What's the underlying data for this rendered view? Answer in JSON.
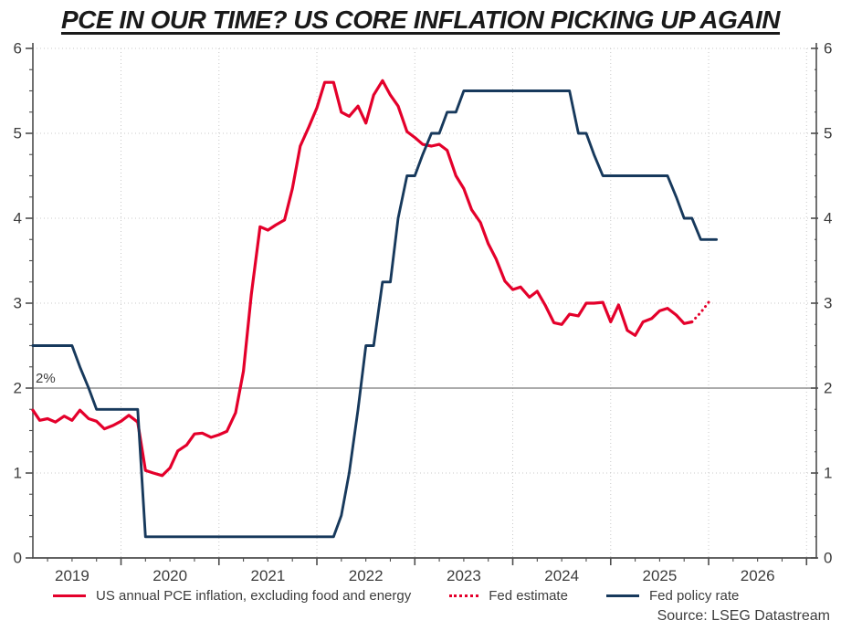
{
  "chart_data": {
    "type": "line",
    "title": "PCE IN OUR TIME? US CORE INFLATION PICKING UP AGAIN",
    "source": "Source: LSEG Datastream",
    "grid": true,
    "legend_position": "bottom",
    "x_axis": {
      "min": 2019.1,
      "max": 2027.1,
      "year_gridlines": [
        2020,
        2021,
        2022,
        2023,
        2024,
        2025,
        2026,
        2027
      ],
      "year_labels": [
        "2019",
        "2020",
        "2021",
        "2022",
        "2023",
        "2024",
        "2025",
        "2026"
      ],
      "minor_tick_interval": 0.25
    },
    "y_axis": {
      "min": 0,
      "max": 6,
      "major_ticks": [
        0,
        1,
        2,
        3,
        4,
        5,
        6
      ],
      "gridline_values": [
        1,
        3,
        4,
        5,
        6
      ],
      "minor_tick_interval": 0.25,
      "dual_axis": true
    },
    "reference_line": {
      "value": 2,
      "label": "2%",
      "color": "#8f8f8f"
    },
    "colors": {
      "grid": "#c8c8c8",
      "axis": "#4d4d4d",
      "text": "#3d3d3d",
      "pce_red": "#e4002b",
      "policy_navy": "#17395c"
    },
    "series": [
      {
        "name": "US annual PCE inflation, excluding food and energy",
        "color": "#e4002b",
        "style": "solid",
        "width": 3.2,
        "points": [
          [
            2019.1,
            1.74
          ],
          [
            2019.17,
            1.62
          ],
          [
            2019.25,
            1.64
          ],
          [
            2019.33,
            1.6
          ],
          [
            2019.42,
            1.67
          ],
          [
            2019.5,
            1.62
          ],
          [
            2019.58,
            1.74
          ],
          [
            2019.67,
            1.64
          ],
          [
            2019.75,
            1.61
          ],
          [
            2019.83,
            1.52
          ],
          [
            2019.92,
            1.56
          ],
          [
            2020.0,
            1.61
          ],
          [
            2020.08,
            1.68
          ],
          [
            2020.17,
            1.6
          ],
          [
            2020.25,
            1.03
          ],
          [
            2020.33,
            1.0
          ],
          [
            2020.42,
            0.97
          ],
          [
            2020.5,
            1.06
          ],
          [
            2020.58,
            1.26
          ],
          [
            2020.67,
            1.33
          ],
          [
            2020.75,
            1.46
          ],
          [
            2020.83,
            1.47
          ],
          [
            2020.92,
            1.42
          ],
          [
            2021.0,
            1.45
          ],
          [
            2021.08,
            1.49
          ],
          [
            2021.17,
            1.71
          ],
          [
            2021.25,
            2.2
          ],
          [
            2021.33,
            3.1
          ],
          [
            2021.42,
            3.9
          ],
          [
            2021.5,
            3.86
          ],
          [
            2021.58,
            3.92
          ],
          [
            2021.67,
            3.98
          ],
          [
            2021.75,
            4.35
          ],
          [
            2021.83,
            4.85
          ],
          [
            2021.92,
            5.08
          ],
          [
            2022.0,
            5.3
          ],
          [
            2022.08,
            5.6
          ],
          [
            2022.17,
            5.6
          ],
          [
            2022.25,
            5.25
          ],
          [
            2022.33,
            5.2
          ],
          [
            2022.42,
            5.32
          ],
          [
            2022.5,
            5.12
          ],
          [
            2022.58,
            5.45
          ],
          [
            2022.67,
            5.62
          ],
          [
            2022.75,
            5.45
          ],
          [
            2022.83,
            5.32
          ],
          [
            2022.92,
            5.02
          ],
          [
            2023.0,
            4.95
          ],
          [
            2023.08,
            4.87
          ],
          [
            2023.17,
            4.85
          ],
          [
            2023.25,
            4.87
          ],
          [
            2023.33,
            4.8
          ],
          [
            2023.42,
            4.5
          ],
          [
            2023.5,
            4.35
          ],
          [
            2023.58,
            4.1
          ],
          [
            2023.67,
            3.95
          ],
          [
            2023.75,
            3.7
          ],
          [
            2023.83,
            3.52
          ],
          [
            2023.92,
            3.26
          ],
          [
            2024.0,
            3.16
          ],
          [
            2024.08,
            3.19
          ],
          [
            2024.17,
            3.07
          ],
          [
            2024.25,
            3.14
          ],
          [
            2024.33,
            2.98
          ],
          [
            2024.42,
            2.77
          ],
          [
            2024.5,
            2.75
          ],
          [
            2024.58,
            2.87
          ],
          [
            2024.67,
            2.85
          ],
          [
            2024.75,
            3.0
          ],
          [
            2024.83,
            3.0
          ],
          [
            2024.92,
            3.01
          ],
          [
            2025.0,
            2.78
          ],
          [
            2025.08,
            2.98
          ],
          [
            2025.17,
            2.68
          ],
          [
            2025.25,
            2.62
          ],
          [
            2025.33,
            2.78
          ],
          [
            2025.42,
            2.82
          ],
          [
            2025.5,
            2.91
          ],
          [
            2025.58,
            2.94
          ],
          [
            2025.67,
            2.86
          ],
          [
            2025.75,
            2.76
          ],
          [
            2025.83,
            2.78
          ]
        ]
      },
      {
        "name": "Fed estimate",
        "color": "#e4002b",
        "style": "dotted",
        "width": 3,
        "points": [
          [
            2025.83,
            2.78
          ],
          [
            2025.92,
            2.89
          ],
          [
            2026.0,
            3.01
          ]
        ]
      },
      {
        "name": "Fed policy rate",
        "color": "#17395c",
        "style": "solid",
        "width": 2.9,
        "points": [
          [
            2019.1,
            2.5
          ],
          [
            2019.5,
            2.5
          ],
          [
            2019.58,
            2.25
          ],
          [
            2019.67,
            2.0
          ],
          [
            2019.75,
            1.75
          ],
          [
            2020.17,
            1.75
          ],
          [
            2020.25,
            0.25
          ],
          [
            2022.17,
            0.25
          ],
          [
            2022.25,
            0.5
          ],
          [
            2022.33,
            1.0
          ],
          [
            2022.42,
            1.75
          ],
          [
            2022.5,
            2.5
          ],
          [
            2022.58,
            2.5
          ],
          [
            2022.67,
            3.25
          ],
          [
            2022.75,
            3.25
          ],
          [
            2022.83,
            4.0
          ],
          [
            2022.92,
            4.5
          ],
          [
            2023.0,
            4.5
          ],
          [
            2023.08,
            4.75
          ],
          [
            2023.17,
            5.0
          ],
          [
            2023.25,
            5.0
          ],
          [
            2023.33,
            5.25
          ],
          [
            2023.42,
            5.25
          ],
          [
            2023.5,
            5.5
          ],
          [
            2024.58,
            5.5
          ],
          [
            2024.67,
            5.0
          ],
          [
            2024.75,
            5.0
          ],
          [
            2024.83,
            4.75
          ],
          [
            2024.92,
            4.5
          ],
          [
            2025.58,
            4.5
          ],
          [
            2025.67,
            4.25
          ],
          [
            2025.75,
            4.0
          ],
          [
            2025.83,
            4.0
          ],
          [
            2025.92,
            3.75
          ],
          [
            2026.08,
            3.75
          ]
        ]
      }
    ]
  }
}
